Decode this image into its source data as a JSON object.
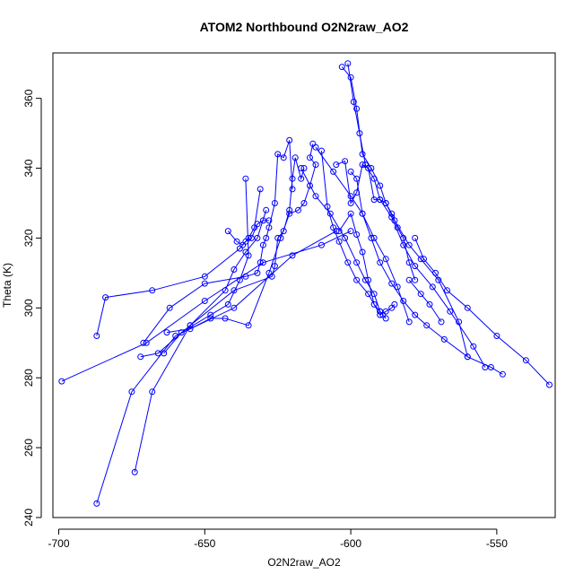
{
  "chart_data": {
    "type": "scatter",
    "title": "ATOM2 Northbound O2N2raw_AO2",
    "xlabel": "O2N2raw_AO2",
    "ylabel": "Theta (K)",
    "xlim": [
      -702,
      -530
    ],
    "ylim": [
      240,
      373
    ],
    "x_ticks": [
      -700,
      -650,
      -600,
      -550
    ],
    "x_tick_labels": [
      "-700",
      "-650",
      "-600",
      "-550"
    ],
    "y_ticks": [
      240,
      260,
      280,
      300,
      320,
      340,
      360
    ],
    "y_tick_labels": [
      "240",
      "260",
      "280",
      "300",
      "320",
      "340",
      "360"
    ],
    "grid": false,
    "legend": "none",
    "color": "#0000ff",
    "marker": "open-circle",
    "connected_by_lines": true,
    "series": [
      {
        "x": [
          -687,
          -675,
          -660,
          -640,
          -620,
          -605
        ],
        "y": [
          244,
          276,
          292,
          300,
          315,
          322
        ]
      },
      {
        "x": [
          -674,
          -668,
          -655,
          -643,
          -640,
          -636,
          -632,
          -629
        ],
        "y": [
          253,
          276,
          295,
          305,
          311,
          316,
          320,
          328
        ]
      },
      {
        "x": [
          -699,
          -670,
          -650,
          -630,
          -610,
          -600
        ],
        "y": [
          279,
          290,
          302,
          313,
          318,
          322
        ]
      },
      {
        "x": [
          -687,
          -684,
          -668,
          -650,
          -638,
          -635,
          -633,
          -631
        ],
        "y": [
          292,
          303,
          305,
          309,
          317,
          320,
          323,
          334
        ]
      },
      {
        "x": [
          -672,
          -666,
          -655,
          -640,
          -627,
          -626,
          -625,
          -623,
          -621,
          -620,
          -619,
          -617,
          -616
        ],
        "y": [
          286,
          287,
          295,
          305,
          309,
          312,
          320,
          322,
          328,
          337,
          343,
          337,
          340
        ]
      },
      {
        "x": [
          -671,
          -662,
          -650,
          -636,
          -632,
          -631,
          -630,
          -629,
          -628,
          -626,
          -625,
          -623,
          -621,
          -620
        ],
        "y": [
          290,
          300,
          307,
          309,
          310,
          313,
          318,
          320,
          323,
          330,
          344,
          343,
          348,
          334
        ]
      },
      {
        "x": [
          -664,
          -658,
          -648,
          -642,
          -638,
          -635,
          -636
        ],
        "y": [
          287,
          293,
          298,
          301,
          308,
          315,
          337
        ]
      },
      {
        "x": [
          -663,
          -655,
          -648,
          -643,
          -635,
          -628,
          -624,
          -621,
          -618,
          -616,
          -614,
          -612,
          -614,
          -613
        ],
        "y": [
          293,
          294,
          297,
          297,
          295,
          310,
          320,
          327,
          328,
          330,
          335,
          341,
          343,
          347
        ]
      },
      {
        "x": [
          -642,
          -639,
          -637,
          -636,
          -634,
          -632,
          -630,
          -628
        ],
        "y": [
          322,
          319,
          318,
          319,
          320,
          324,
          325,
          325
        ]
      },
      {
        "x": [
          -610,
          -608,
          -606,
          -604,
          -601,
          -598,
          -594,
          -590,
          -588,
          -586,
          -585
        ],
        "y": [
          345,
          329,
          323,
          319,
          313,
          308,
          304,
          298,
          299,
          300,
          301
        ]
      },
      {
        "x": [
          -603,
          -600,
          -598,
          -596,
          -593,
          -590,
          -588,
          -585,
          -580,
          -576,
          -570,
          -563,
          -560
        ],
        "y": [
          369,
          366,
          357,
          344,
          340,
          335,
          330,
          325,
          318,
          314,
          308,
          296,
          286
        ]
      },
      {
        "x": [
          -601,
          -599,
          -597,
          -595,
          -592,
          -590,
          -586,
          -582,
          -578,
          -572,
          -566,
          -558,
          -554
        ],
        "y": [
          370,
          359,
          350,
          341,
          337,
          331,
          326,
          318,
          312,
          306,
          299,
          289,
          283
        ]
      },
      {
        "x": [
          -605,
          -602,
          -600,
          -598,
          -596,
          -594,
          -592,
          -590,
          -588,
          -586,
          -584,
          -582,
          -580,
          -578
        ],
        "y": [
          341,
          342,
          330,
          333,
          341,
          340,
          331,
          331,
          330,
          327,
          323,
          320,
          313,
          308
        ]
      },
      {
        "x": [
          -600,
          -598,
          -596,
          -593,
          -590,
          -586,
          -582,
          -578,
          -574,
          -568,
          -560,
          -552,
          -548
        ],
        "y": [
          339,
          337,
          327,
          320,
          313,
          307,
          302,
          298,
          295,
          291,
          286,
          283,
          281
        ]
      },
      {
        "x": [
          -578,
          -575,
          -571,
          -567,
          -560,
          -550,
          -540,
          -532
        ],
        "y": [
          320,
          314,
          310,
          305,
          300,
          292,
          285,
          278
        ]
      },
      {
        "x": [
          -580,
          -576,
          -573,
          -569
        ],
        "y": [
          308,
          304,
          301,
          296
        ]
      },
      {
        "x": [
          -604,
          -600,
          -598,
          -596,
          -594,
          -592,
          -590,
          -589,
          -588
        ],
        "y": [
          322,
          327,
          321,
          316,
          308,
          301,
          299,
          298,
          297
        ]
      },
      {
        "x": [
          -612,
          -606,
          -600,
          -596,
          -592,
          -588,
          -584,
          -580
        ],
        "y": [
          346,
          339,
          332,
          327,
          320,
          314,
          306,
          296
        ]
      },
      {
        "x": [
          -617,
          -612,
          -607,
          -602,
          -598,
          -595,
          -592,
          -590
        ],
        "y": [
          340,
          332,
          327,
          320,
          313,
          308,
          304,
          299
        ]
      }
    ]
  }
}
